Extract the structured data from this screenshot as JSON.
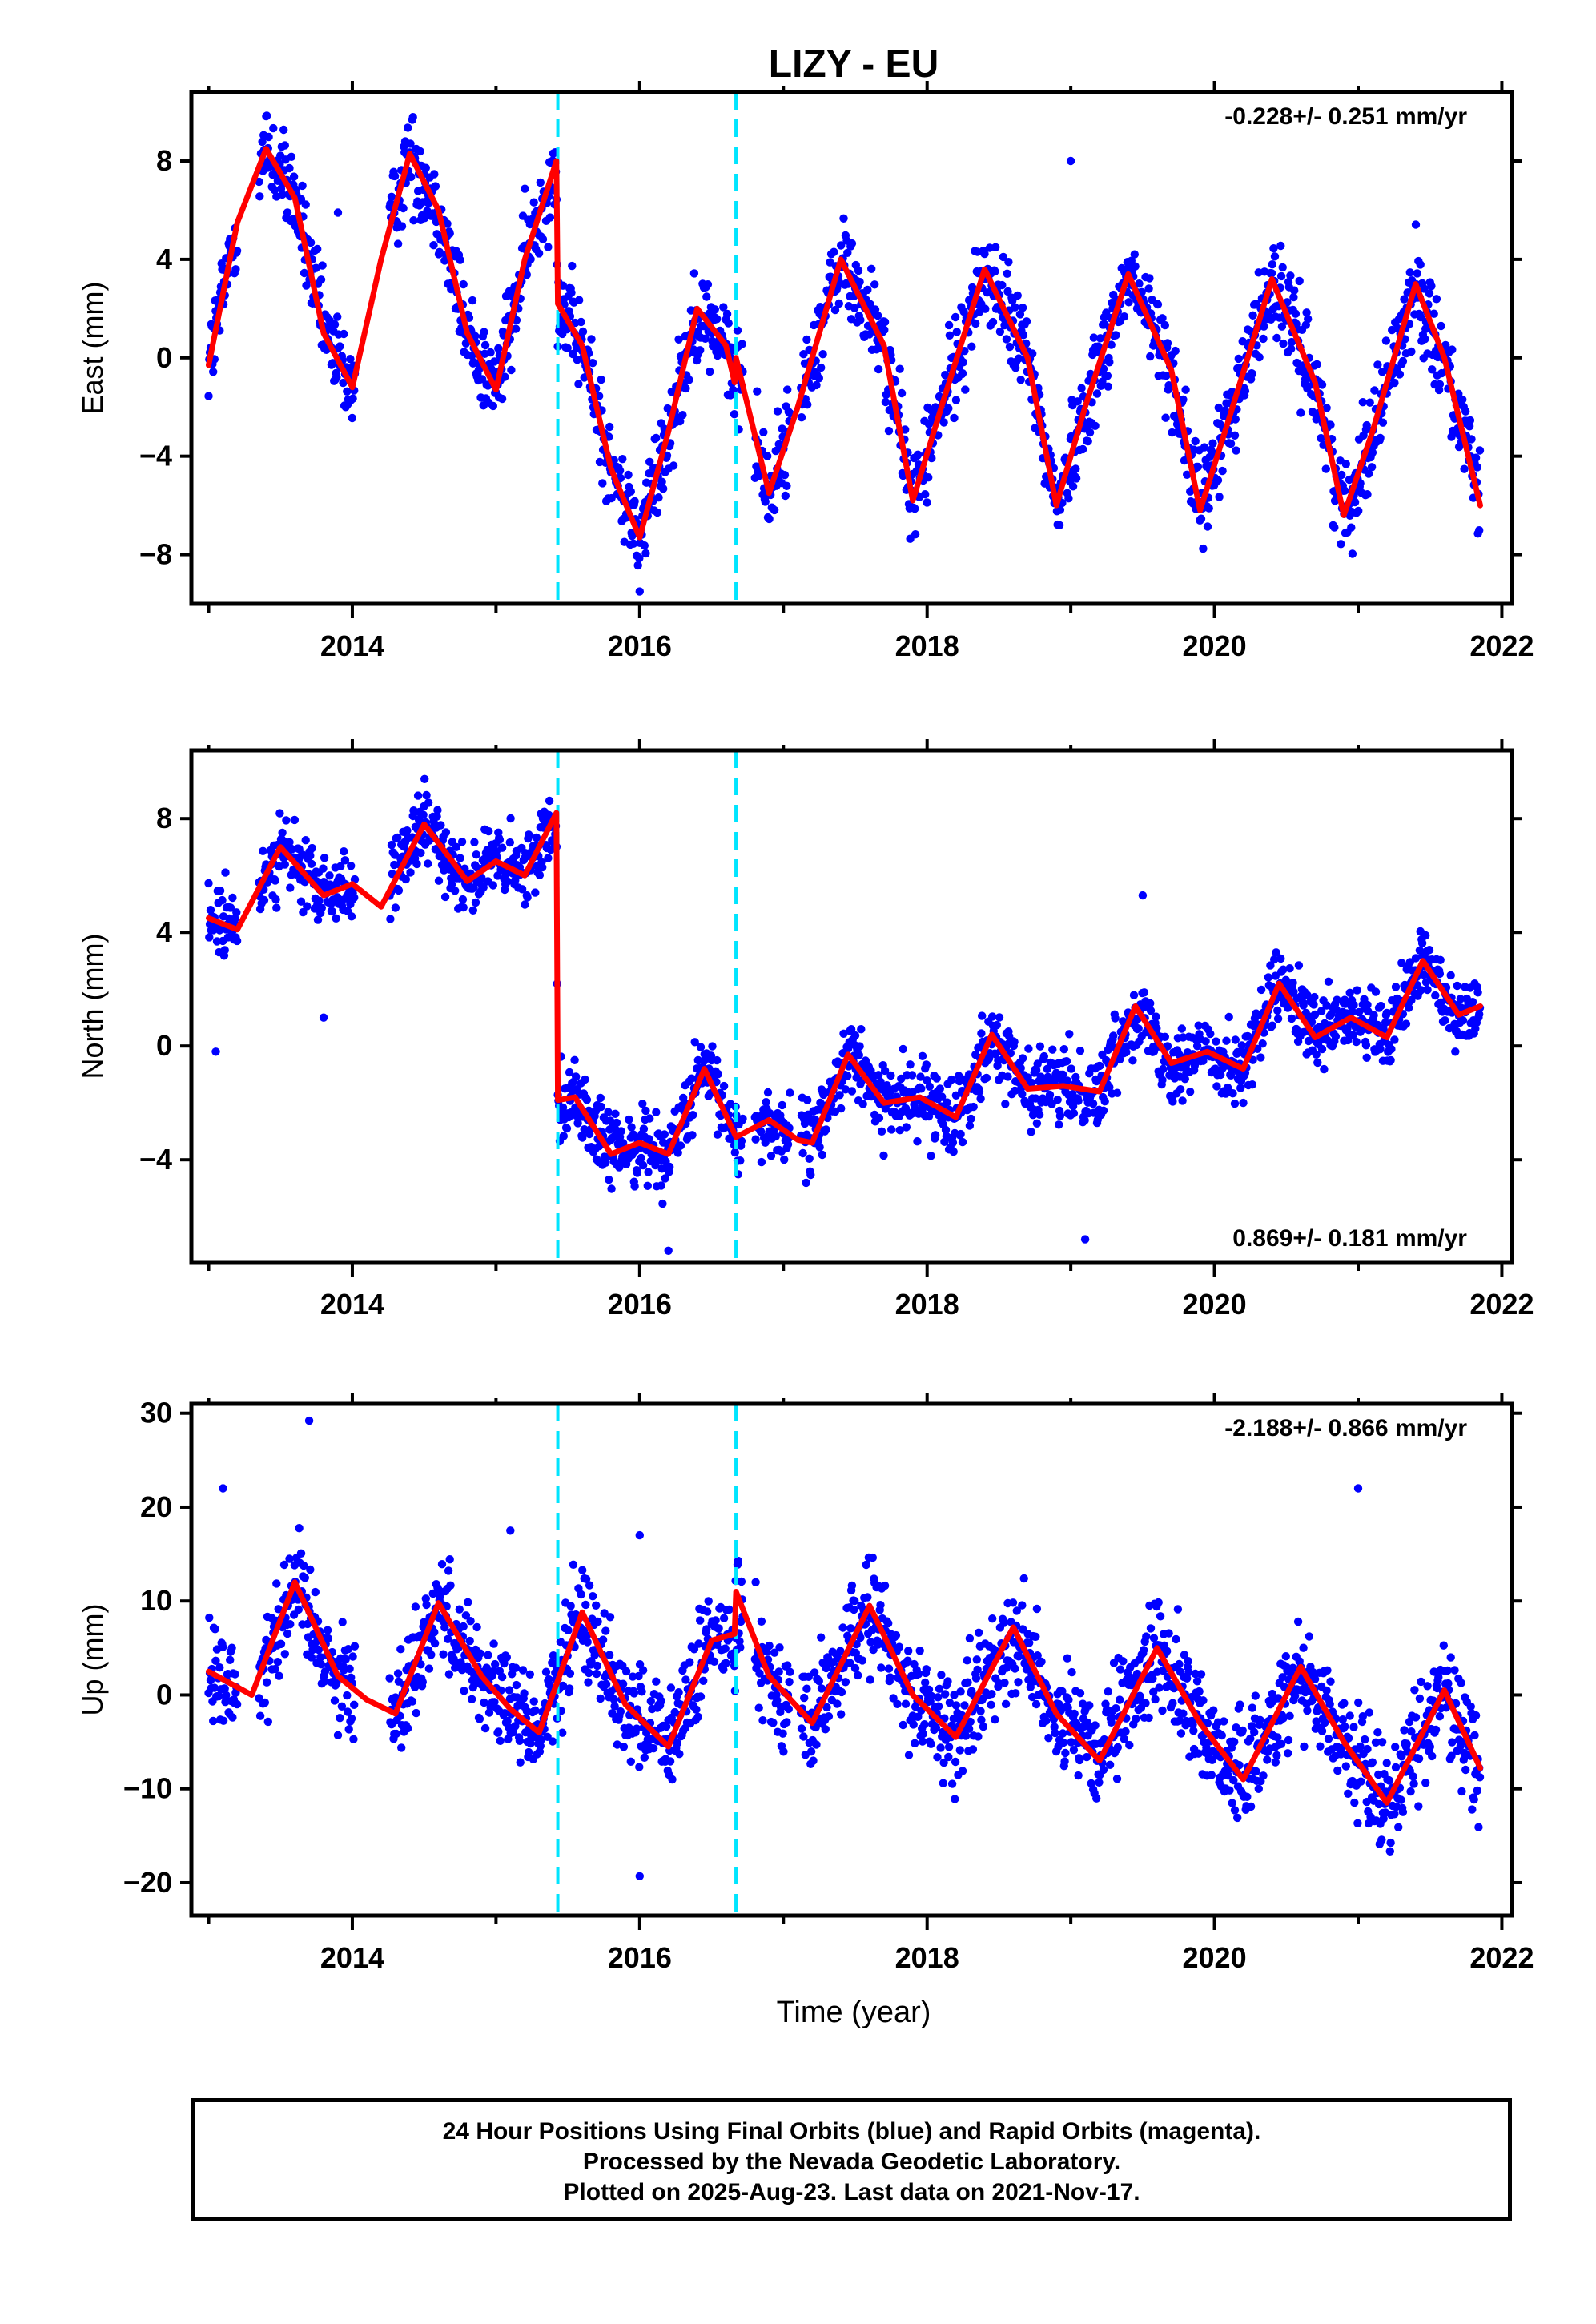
{
  "chart_data": {
    "type": "scatter",
    "title": "LIZY - EU",
    "xlabel": "Time (year)",
    "x_ticks": [
      "2014",
      "2016",
      "2018",
      "2020",
      "2022"
    ],
    "xlim": [
      2012.88,
      2022.07
    ],
    "offset_lines": [
      2015.43,
      2016.67
    ],
    "colors": {
      "points": "#0000ff",
      "model": "#ff0000",
      "offsets": "#00e5ff"
    },
    "panels": [
      {
        "name": "East",
        "ylabel": "East (mm)",
        "ylim": [
          -10,
          10.8
        ],
        "y_ticks": [
          8,
          4,
          0,
          -4,
          -8
        ],
        "rate": "-0.228+/- 0.251 mm/yr",
        "rate_position": "top-right",
        "model": {
          "x": [
            2013.0,
            2013.2,
            2013.4,
            2013.6,
            2013.8,
            2014.0,
            2014.2,
            2014.4,
            2014.6,
            2014.8,
            2015.0,
            2015.2,
            2015.42,
            2015.43,
            2015.6,
            2015.8,
            2016.0,
            2016.2,
            2016.4,
            2016.6,
            2016.66,
            2016.67,
            2016.9,
            2017.1,
            2017.4,
            2017.7,
            2017.9,
            2018.1,
            2018.4,
            2018.7,
            2018.9,
            2019.1,
            2019.4,
            2019.7,
            2019.9,
            2020.1,
            2020.4,
            2020.7,
            2020.9,
            2021.1,
            2021.4,
            2021.6,
            2021.85
          ],
          "y": [
            -0.3,
            5.5,
            8.5,
            6.5,
            1.0,
            -1.2,
            4.0,
            8.3,
            6.0,
            1.0,
            -1.3,
            4.0,
            8.0,
            2.2,
            0.5,
            -4.5,
            -7.3,
            -3.0,
            2.0,
            0.5,
            -1.0,
            0.0,
            -5.5,
            -2.0,
            4.0,
            0.5,
            -5.8,
            -2.0,
            3.6,
            0.0,
            -6.0,
            -2.0,
            3.4,
            -0.5,
            -6.2,
            -2.5,
            3.2,
            -1.0,
            -6.4,
            -3.0,
            3.0,
            0.0,
            -6.0
          ]
        },
        "scatter": {
          "amplitude": 1.6,
          "outliers": [
            [
              2019.0,
              8.0
            ],
            [
              2016.0,
              -9.5
            ],
            [
              2013.9,
              5.9
            ]
          ]
        }
      },
      {
        "name": "North",
        "ylabel": "North (mm)",
        "ylim": [
          -7.6,
          10.4
        ],
        "y_ticks": [
          8,
          4,
          0,
          -4
        ],
        "rate": "0.869+/- 0.181 mm/yr",
        "rate_position": "bottom-right",
        "model": {
          "x": [
            2013.0,
            2013.2,
            2013.5,
            2013.8,
            2014.0,
            2014.2,
            2014.5,
            2014.8,
            2015.0,
            2015.2,
            2015.42,
            2015.43,
            2015.55,
            2015.8,
            2016.0,
            2016.2,
            2016.45,
            2016.67,
            2016.9,
            2017.1,
            2017.2,
            2017.45,
            2017.7,
            2017.95,
            2018.2,
            2018.45,
            2018.7,
            2018.95,
            2019.2,
            2019.45,
            2019.7,
            2019.95,
            2020.2,
            2020.45,
            2020.7,
            2020.95,
            2021.2,
            2021.45,
            2021.7,
            2021.85
          ],
          "y": [
            4.5,
            4.1,
            7.0,
            5.3,
            5.7,
            4.9,
            7.8,
            5.8,
            6.5,
            6.0,
            8.2,
            -1.9,
            -1.8,
            -3.8,
            -3.4,
            -3.8,
            -0.8,
            -3.2,
            -2.6,
            -3.3,
            -3.4,
            -0.3,
            -2.0,
            -1.8,
            -2.5,
            0.4,
            -1.5,
            -1.4,
            -1.6,
            1.4,
            -0.6,
            -0.2,
            -0.8,
            2.2,
            0.3,
            1.0,
            0.3,
            3.0,
            1.1,
            1.4
          ]
        },
        "scatter": {
          "amplitude": 1.1,
          "outliers": [
            [
              2019.1,
              -6.8
            ],
            [
              2016.2,
              -7.2
            ],
            [
              2013.05,
              -0.2
            ],
            [
              2013.8,
              1.0
            ],
            [
              2019.5,
              5.3
            ]
          ]
        }
      },
      {
        "name": "Up",
        "ylabel": "Up (mm)",
        "ylim": [
          -23.5,
          31
        ],
        "y_ticks": [
          30,
          20,
          10,
          0,
          -10,
          -20
        ],
        "rate": "-2.188+/- 0.866 mm/yr",
        "rate_position": "top-right",
        "model": {
          "x": [
            2013.0,
            2013.3,
            2013.6,
            2013.9,
            2014.1,
            2014.3,
            2014.6,
            2014.9,
            2015.1,
            2015.3,
            2015.6,
            2015.9,
            2016.2,
            2016.5,
            2016.66,
            2016.67,
            2016.9,
            2017.2,
            2017.6,
            2017.9,
            2018.2,
            2018.6,
            2018.9,
            2019.2,
            2019.6,
            2019.9,
            2020.2,
            2020.6,
            2020.9,
            2021.2,
            2021.6,
            2021.85
          ],
          "y": [
            2.5,
            0.0,
            12.0,
            2.0,
            -0.5,
            -2.0,
            9.8,
            2.0,
            -1.5,
            -4.0,
            8.8,
            -1.0,
            -5.5,
            5.8,
            6.5,
            11.0,
            2.0,
            -3.0,
            9.5,
            0.0,
            -4.5,
            7.2,
            -2.0,
            -7.0,
            5.0,
            -3.0,
            -9.0,
            3.0,
            -5.0,
            -11.5,
            0.5,
            -7.8
          ]
        },
        "scatter": {
          "amplitude": 4.8,
          "outliers": [
            [
              2013.7,
              29.2
            ],
            [
              2013.1,
              22.0
            ],
            [
              2016.0,
              -19.3
            ],
            [
              2021.0,
              22.0
            ],
            [
              2015.1,
              17.5
            ],
            [
              2016.0,
              17.0
            ]
          ]
        }
      }
    ]
  },
  "footer": {
    "lines": [
      "24 Hour Positions Using Final Orbits (blue) and Rapid Orbits (magenta).",
      "Processed by the Nevada Geodetic Laboratory.",
      "Plotted on 2025-Aug-23. Last data on 2021-Nov-17."
    ]
  }
}
